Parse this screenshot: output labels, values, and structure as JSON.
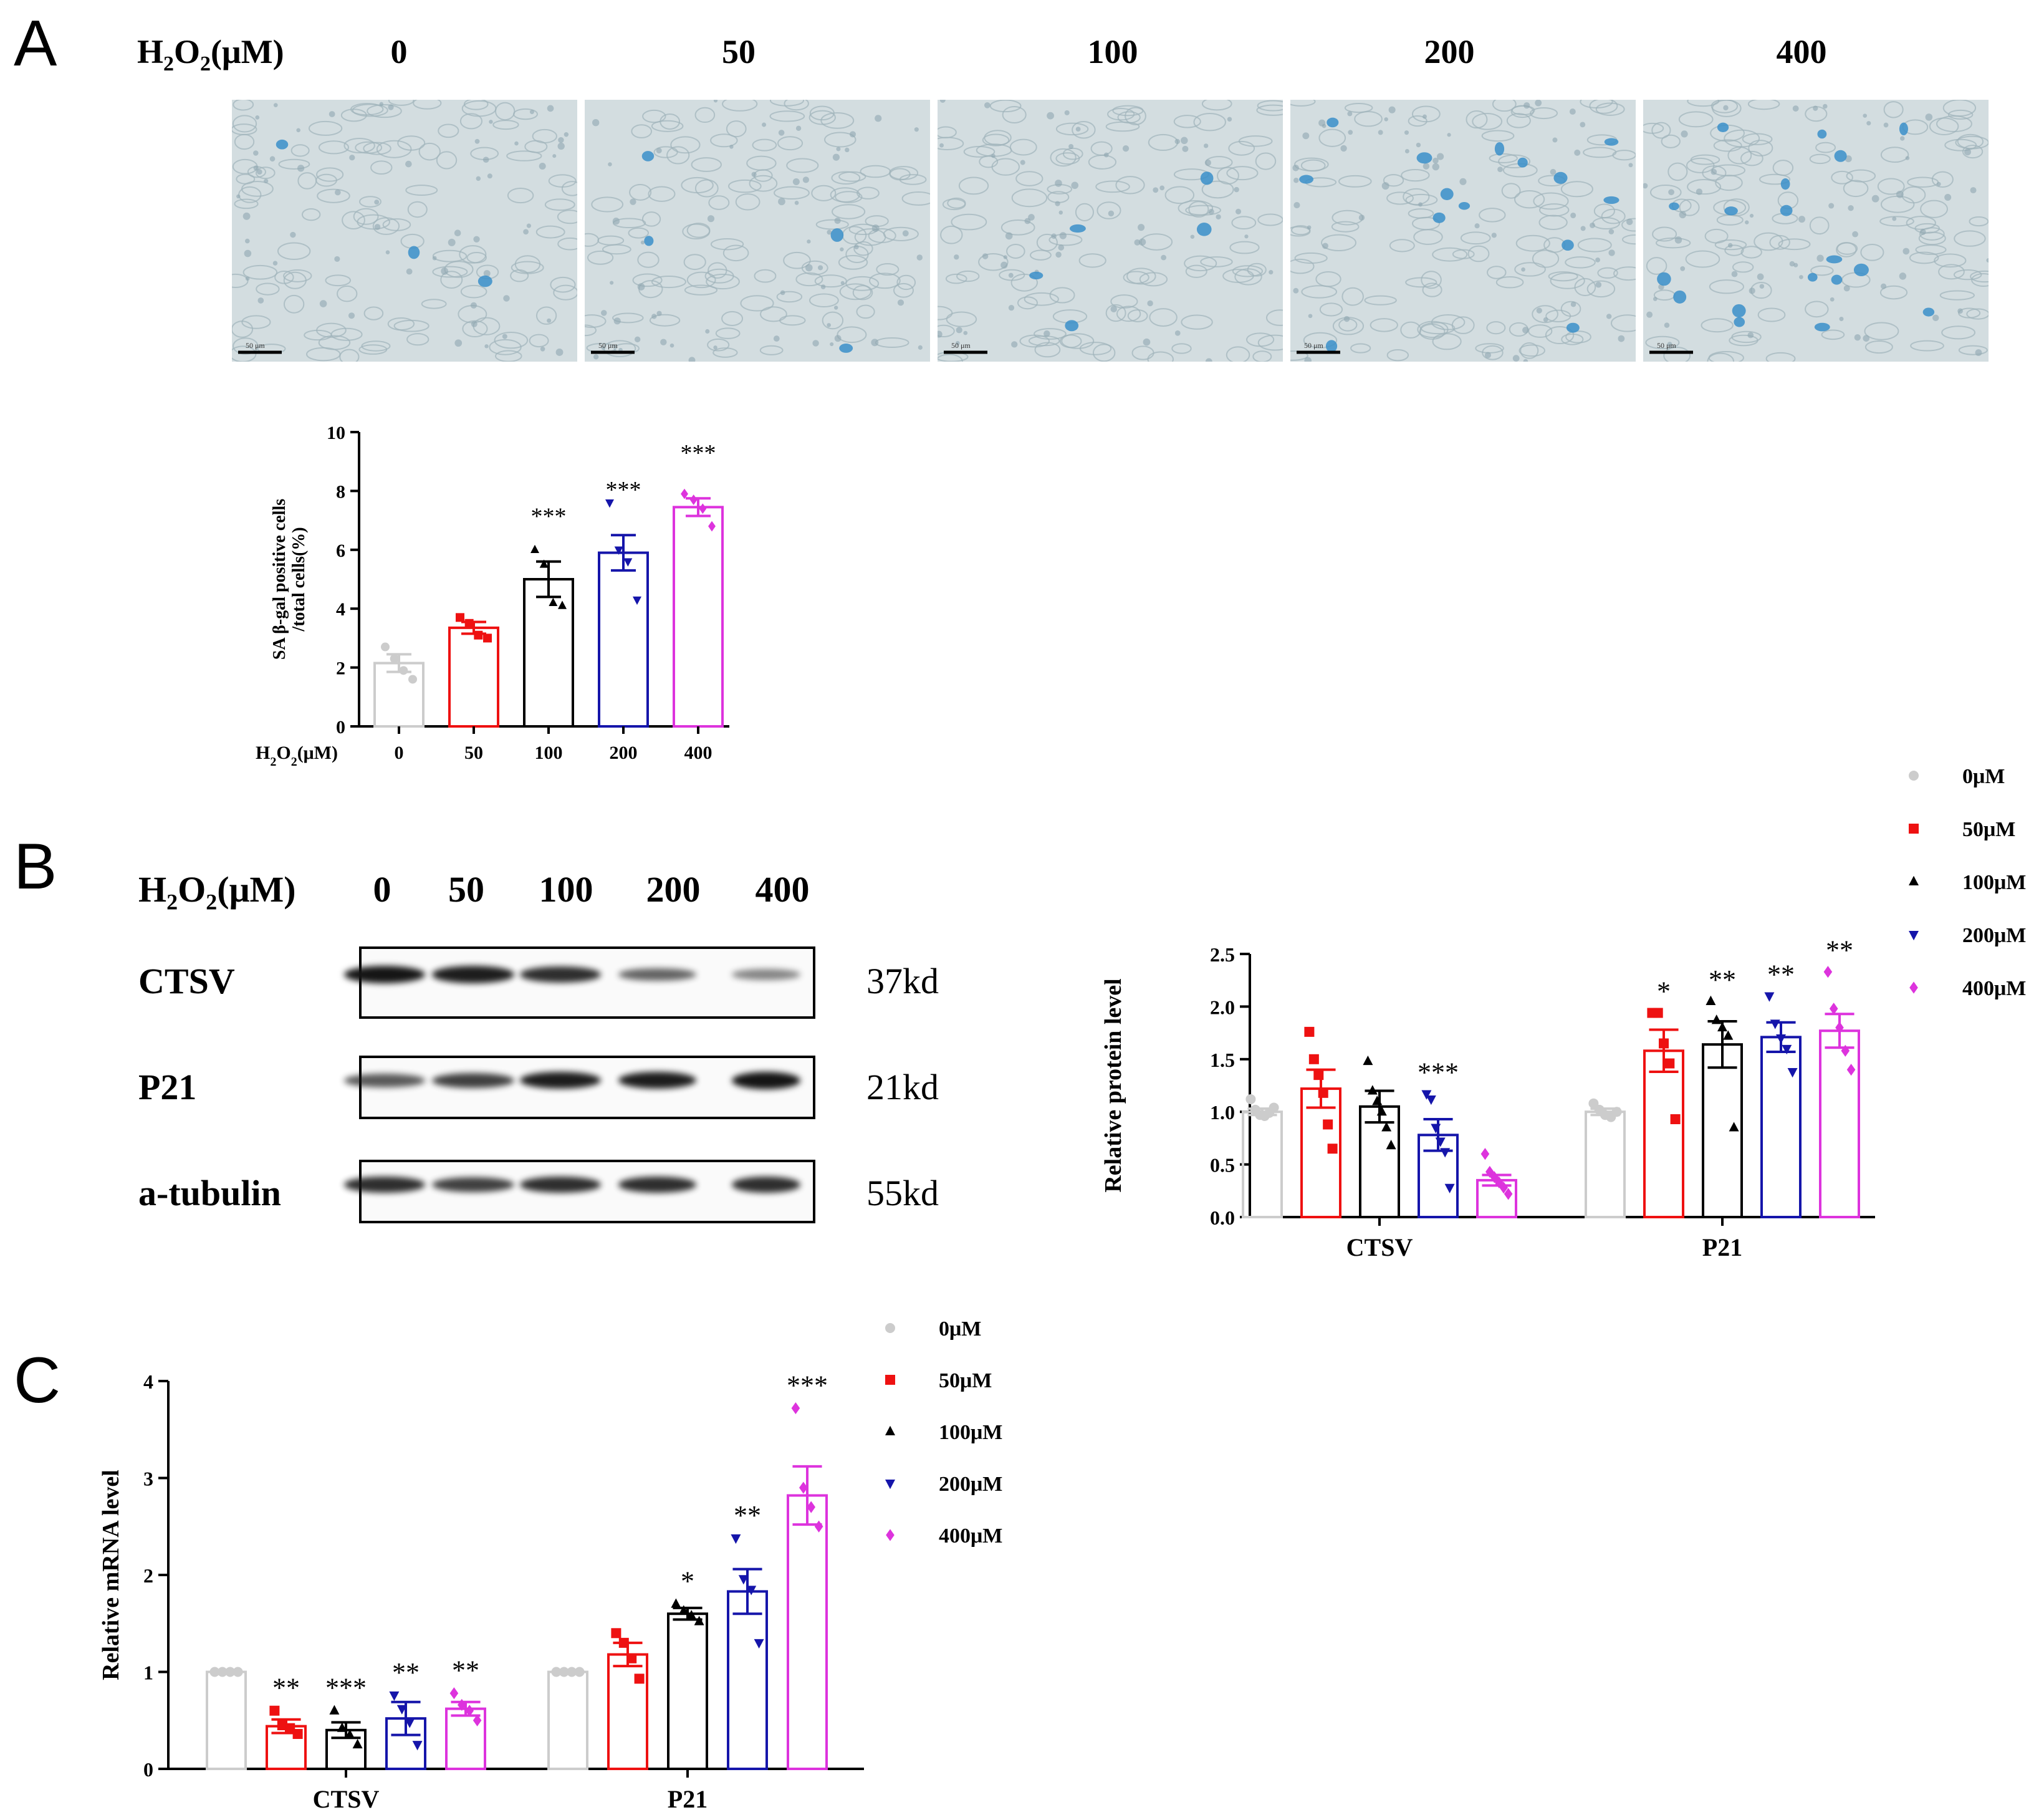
{
  "panels": {
    "a": "A",
    "b": "B",
    "c": "C"
  },
  "colors": {
    "0": "#cccccc",
    "50": "#ee1111",
    "100": "#000000",
    "200": "#1515aa",
    "400": "#dd33dd"
  },
  "panel_a": {
    "row_label_html_note": "H2O2(μM)",
    "row_label": {
      "main": "H",
      "sub1": "2",
      "mid": "O",
      "sub2": "2",
      "tail": "(μM)"
    },
    "doses": [
      "0",
      "50",
      "100",
      "200",
      "400"
    ],
    "scale_bar_text": "50 μm",
    "blue_cell_counts": [
      3,
      4,
      5,
      14,
      18
    ]
  },
  "panel_b": {
    "row_label": {
      "main": "H",
      "sub1": "2",
      "mid": "O",
      "sub2": "2",
      "tail": "(μM)"
    },
    "doses": [
      "0",
      "50",
      "100",
      "200",
      "400"
    ],
    "blots": [
      {
        "name": "CTSV",
        "size": "37kd",
        "intensity": [
          1.0,
          0.95,
          0.85,
          0.55,
          0.35
        ]
      },
      {
        "name": "P21",
        "size": "21kd",
        "intensity": [
          0.6,
          0.75,
          0.95,
          0.95,
          1.0
        ]
      },
      {
        "name": "a-tubulin",
        "size": "55kd",
        "intensity": [
          0.85,
          0.75,
          0.85,
          0.85,
          0.85
        ]
      }
    ]
  },
  "chart_data": [
    {
      "id": "sa-gal",
      "type": "bar",
      "ylabel_lines": [
        "SA β-gal positive cells",
        "/total cells(%)"
      ],
      "xlabel": {
        "main": "H",
        "sub1": "2",
        "mid": "O",
        "sub2": "2",
        "tail": "(μM)"
      },
      "categories": [
        "0",
        "50",
        "100",
        "200",
        "400"
      ],
      "values": [
        2.15,
        3.35,
        5.0,
        5.9,
        7.45
      ],
      "sem": [
        0.3,
        0.2,
        0.6,
        0.6,
        0.3
      ],
      "points": [
        [
          2.7,
          2.3,
          1.9,
          1.6
        ],
        [
          3.7,
          3.5,
          3.1,
          3.0
        ],
        [
          6.0,
          5.5,
          4.2,
          4.1
        ],
        [
          7.6,
          6.0,
          5.6,
          4.3
        ],
        [
          7.9,
          7.7,
          7.4,
          6.8
        ]
      ],
      "markers": [
        "circle",
        "square",
        "triangle-up",
        "triangle-down",
        "diamond"
      ],
      "significance": [
        "",
        "",
        "***",
        "***",
        "***"
      ],
      "yticks": [
        "0",
        "2",
        "4",
        "6",
        "8",
        "10"
      ],
      "ylim": [
        0,
        10
      ]
    },
    {
      "id": "protein",
      "type": "bar",
      "ylabel": "Relative protein level",
      "categories": [
        "CTSV",
        "P21"
      ],
      "series": [
        {
          "name": "0μM",
          "marker": "circle",
          "values": [
            1.0,
            1.0
          ],
          "sem": [
            0.03,
            0.03
          ],
          "points": [
            [
              1.12,
              1.02,
              0.97,
              0.96,
              0.99,
              1.04
            ],
            [
              1.08,
              1.02,
              0.97,
              0.95,
              1.0
            ]
          ],
          "significance": [
            "",
            ""
          ]
        },
        {
          "name": "50μM",
          "marker": "square",
          "values": [
            1.22,
            1.58
          ],
          "sem": [
            0.18,
            0.2
          ],
          "points": [
            [
              1.76,
              1.5,
              1.35,
              1.18,
              0.88,
              0.65
            ],
            [
              1.94,
              1.94,
              1.65,
              1.46,
              0.93
            ]
          ],
          "significance": [
            "",
            "*"
          ]
        },
        {
          "name": "100μM",
          "marker": "triangle-up",
          "values": [
            1.05,
            1.64
          ],
          "sem": [
            0.15,
            0.22
          ],
          "points": [
            [
              1.48,
              1.2,
              1.1,
              1.0,
              0.85,
              0.68
            ],
            [
              2.05,
              1.87,
              1.8,
              1.72,
              0.85
            ]
          ],
          "significance": [
            "",
            "**"
          ]
        },
        {
          "name": "200μM",
          "marker": "triangle-down",
          "values": [
            0.78,
            1.71
          ],
          "sem": [
            0.15,
            0.14
          ],
          "points": [
            [
              1.17,
              1.12,
              0.85,
              0.72,
              0.62,
              0.28
            ],
            [
              2.1,
              1.84,
              1.7,
              1.6,
              1.38
            ]
          ],
          "significance": [
            "***",
            "**"
          ]
        },
        {
          "name": "400μM",
          "marker": "diamond",
          "values": [
            0.35,
            1.77
          ],
          "sem": [
            0.05,
            0.16
          ],
          "points": [
            [
              0.6,
              0.43,
              0.38,
              0.33,
              0.28,
              0.22
            ],
            [
              2.33,
              1.98,
              1.8,
              1.58,
              1.4
            ]
          ],
          "significance": [
            "",
            "**"
          ]
        }
      ],
      "yticks": [
        "0.0",
        "0.5",
        "1.0",
        "1.5",
        "2.0",
        "2.5"
      ],
      "ylim": [
        0,
        2.5
      ]
    },
    {
      "id": "mrna",
      "type": "bar",
      "ylabel": "Relative mRNA level",
      "categories": [
        "CTSV",
        "P21"
      ],
      "series": [
        {
          "name": "0μM",
          "marker": "circle",
          "values": [
            1.0,
            1.0
          ],
          "sem": [
            0.0,
            0.0
          ],
          "points": [
            [
              1.0,
              1.0,
              1.0,
              1.0
            ],
            [
              1.0,
              1.0,
              1.0,
              1.0
            ]
          ],
          "significance": [
            "",
            ""
          ]
        },
        {
          "name": "50μM",
          "marker": "square",
          "values": [
            0.44,
            1.18
          ],
          "sem": [
            0.07,
            0.12
          ],
          "points": [
            [
              0.6,
              0.45,
              0.42,
              0.36
            ],
            [
              1.4,
              1.3,
              1.14,
              0.93
            ]
          ],
          "significance": [
            "**",
            ""
          ]
        },
        {
          "name": "100μM",
          "marker": "triangle-up",
          "values": [
            0.4,
            1.6
          ],
          "sem": [
            0.08,
            0.06
          ],
          "points": [
            [
              0.6,
              0.42,
              0.35,
              0.25
            ],
            [
              1.7,
              1.63,
              1.58,
              1.52
            ]
          ],
          "significance": [
            "***",
            "*"
          ]
        },
        {
          "name": "200μM",
          "marker": "triangle-down",
          "values": [
            0.52,
            1.83
          ],
          "sem": [
            0.17,
            0.23
          ],
          "points": [
            [
              0.76,
              0.62,
              0.48,
              0.25
            ],
            [
              2.38,
              1.96,
              1.85,
              1.3
            ]
          ],
          "significance": [
            "**",
            "**"
          ]
        },
        {
          "name": "400μM",
          "marker": "diamond",
          "values": [
            0.62,
            2.82
          ],
          "sem": [
            0.07,
            0.3
          ],
          "points": [
            [
              0.78,
              0.66,
              0.6,
              0.5
            ],
            [
              3.72,
              2.9,
              2.7,
              2.5
            ]
          ],
          "significance": [
            "**",
            "***"
          ]
        }
      ],
      "yticks": [
        "0",
        "1",
        "2",
        "3",
        "4"
      ],
      "ylim": [
        0,
        4
      ]
    }
  ]
}
